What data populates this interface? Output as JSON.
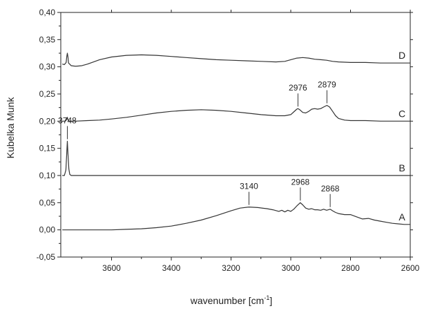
{
  "chart_data": {
    "type": "line",
    "title": "",
    "xlabel": "wavenumber [cm",
    "xlabel_sup": "-1",
    "xlabel_close": "]",
    "ylabel": "Kubelka Munk",
    "xlim": [
      3770,
      2600
    ],
    "ylim": [
      -0.05,
      0.4
    ],
    "x_reversed": true,
    "grid": false,
    "x_ticks": [
      3600,
      3400,
      3200,
      3000,
      2800,
      2600
    ],
    "y_ticks": [
      "0,40",
      "0,35",
      "0,30",
      "0,25",
      "0,20",
      "0,15",
      "0,10",
      "0,05",
      "0,00",
      "-0,05"
    ],
    "y_tick_values": [
      0.4,
      0.35,
      0.3,
      0.25,
      0.2,
      0.15,
      0.1,
      0.05,
      0.0,
      -0.05
    ],
    "series": [
      {
        "name": "D",
        "points": [
          [
            3765,
            0.305
          ],
          [
            3758,
            0.304
          ],
          [
            3752,
            0.308
          ],
          [
            3750,
            0.318
          ],
          [
            3748,
            0.325
          ],
          [
            3746,
            0.318
          ],
          [
            3744,
            0.307
          ],
          [
            3735,
            0.302
          ],
          [
            3720,
            0.301
          ],
          [
            3700,
            0.302
          ],
          [
            3680,
            0.305
          ],
          [
            3660,
            0.309
          ],
          [
            3640,
            0.313
          ],
          [
            3600,
            0.318
          ],
          [
            3550,
            0.321
          ],
          [
            3500,
            0.322
          ],
          [
            3450,
            0.321
          ],
          [
            3400,
            0.319
          ],
          [
            3350,
            0.317
          ],
          [
            3300,
            0.315
          ],
          [
            3250,
            0.313
          ],
          [
            3200,
            0.312
          ],
          [
            3150,
            0.311
          ],
          [
            3100,
            0.31
          ],
          [
            3050,
            0.309
          ],
          [
            3020,
            0.31
          ],
          [
            3000,
            0.313
          ],
          [
            2980,
            0.316
          ],
          [
            2960,
            0.317
          ],
          [
            2940,
            0.316
          ],
          [
            2920,
            0.314
          ],
          [
            2900,
            0.313
          ],
          [
            2880,
            0.312
          ],
          [
            2860,
            0.31
          ],
          [
            2840,
            0.309
          ],
          [
            2800,
            0.308
          ],
          [
            2750,
            0.308
          ],
          [
            2700,
            0.307
          ],
          [
            2650,
            0.307
          ],
          [
            2600,
            0.307
          ]
        ]
      },
      {
        "name": "C",
        "points": [
          [
            3765,
            0.2
          ],
          [
            3755,
            0.2
          ],
          [
            3750,
            0.203
          ],
          [
            3748,
            0.207
          ],
          [
            3746,
            0.203
          ],
          [
            3742,
            0.2
          ],
          [
            3720,
            0.2
          ],
          [
            3680,
            0.201
          ],
          [
            3640,
            0.202
          ],
          [
            3600,
            0.204
          ],
          [
            3550,
            0.207
          ],
          [
            3500,
            0.211
          ],
          [
            3450,
            0.215
          ],
          [
            3400,
            0.218
          ],
          [
            3350,
            0.22
          ],
          [
            3300,
            0.221
          ],
          [
            3250,
            0.22
          ],
          [
            3200,
            0.218
          ],
          [
            3150,
            0.215
          ],
          [
            3100,
            0.212
          ],
          [
            3050,
            0.21
          ],
          [
            3020,
            0.21
          ],
          [
            3000,
            0.212
          ],
          [
            2990,
            0.217
          ],
          [
            2980,
            0.222
          ],
          [
            2976,
            0.223
          ],
          [
            2970,
            0.221
          ],
          [
            2960,
            0.216
          ],
          [
            2950,
            0.215
          ],
          [
            2940,
            0.218
          ],
          [
            2930,
            0.222
          ],
          [
            2920,
            0.223
          ],
          [
            2910,
            0.222
          ],
          [
            2900,
            0.223
          ],
          [
            2890,
            0.226
          ],
          [
            2879,
            0.229
          ],
          [
            2870,
            0.226
          ],
          [
            2860,
            0.218
          ],
          [
            2850,
            0.21
          ],
          [
            2840,
            0.205
          ],
          [
            2820,
            0.202
          ],
          [
            2800,
            0.201
          ],
          [
            2750,
            0.201
          ],
          [
            2700,
            0.2
          ],
          [
            2650,
            0.2
          ],
          [
            2600,
            0.2
          ]
        ]
      },
      {
        "name": "B",
        "points": [
          [
            3765,
            0.1
          ],
          [
            3758,
            0.1
          ],
          [
            3753,
            0.11
          ],
          [
            3750,
            0.14
          ],
          [
            3748,
            0.163
          ],
          [
            3746,
            0.14
          ],
          [
            3743,
            0.112
          ],
          [
            3740,
            0.102
          ],
          [
            3735,
            0.1
          ],
          [
            3700,
            0.1
          ],
          [
            3600,
            0.1
          ],
          [
            3500,
            0.1
          ],
          [
            3400,
            0.1
          ],
          [
            3300,
            0.1
          ],
          [
            3200,
            0.1
          ],
          [
            3100,
            0.1
          ],
          [
            3000,
            0.1
          ],
          [
            2900,
            0.1
          ],
          [
            2800,
            0.1
          ],
          [
            2700,
            0.1
          ],
          [
            2600,
            0.1
          ]
        ]
      },
      {
        "name": "A",
        "points": [
          [
            3765,
            0.0
          ],
          [
            3700,
            0.0
          ],
          [
            3650,
            0.0
          ],
          [
            3600,
            0.0
          ],
          [
            3550,
            0.001
          ],
          [
            3500,
            0.002
          ],
          [
            3450,
            0.004
          ],
          [
            3400,
            0.007
          ],
          [
            3350,
            0.012
          ],
          [
            3300,
            0.018
          ],
          [
            3250,
            0.026
          ],
          [
            3200,
            0.035
          ],
          [
            3170,
            0.04
          ],
          [
            3140,
            0.042
          ],
          [
            3110,
            0.041
          ],
          [
            3080,
            0.039
          ],
          [
            3060,
            0.037
          ],
          [
            3040,
            0.034
          ],
          [
            3030,
            0.036
          ],
          [
            3020,
            0.033
          ],
          [
            3010,
            0.036
          ],
          [
            3000,
            0.034
          ],
          [
            2990,
            0.038
          ],
          [
            2980,
            0.044
          ],
          [
            2968,
            0.05
          ],
          [
            2960,
            0.046
          ],
          [
            2950,
            0.04
          ],
          [
            2940,
            0.038
          ],
          [
            2930,
            0.039
          ],
          [
            2920,
            0.037
          ],
          [
            2910,
            0.037
          ],
          [
            2900,
            0.036
          ],
          [
            2890,
            0.038
          ],
          [
            2880,
            0.036
          ],
          [
            2868,
            0.038
          ],
          [
            2860,
            0.035
          ],
          [
            2850,
            0.032
          ],
          [
            2840,
            0.03
          ],
          [
            2820,
            0.028
          ],
          [
            2800,
            0.028
          ],
          [
            2780,
            0.024
          ],
          [
            2760,
            0.02
          ],
          [
            2740,
            0.021
          ],
          [
            2720,
            0.018
          ],
          [
            2700,
            0.016
          ],
          [
            2680,
            0.014
          ],
          [
            2660,
            0.012
          ],
          [
            2640,
            0.011
          ],
          [
            2620,
            0.01
          ],
          [
            2600,
            0.01
          ]
        ]
      }
    ],
    "peak_annotations": [
      {
        "label": "2976",
        "x": 2976,
        "y": 0.223,
        "series": "C"
      },
      {
        "label": "2879",
        "x": 2879,
        "y": 0.229,
        "series": "C"
      },
      {
        "label": "3748",
        "x": 3748,
        "y": 0.163,
        "series": "B"
      },
      {
        "label": "3140",
        "x": 3140,
        "y": 0.042,
        "series": "A"
      },
      {
        "label": "2968",
        "x": 2968,
        "y": 0.05,
        "series": "A"
      },
      {
        "label": "2868",
        "x": 2868,
        "y": 0.038,
        "series": "A"
      }
    ]
  }
}
